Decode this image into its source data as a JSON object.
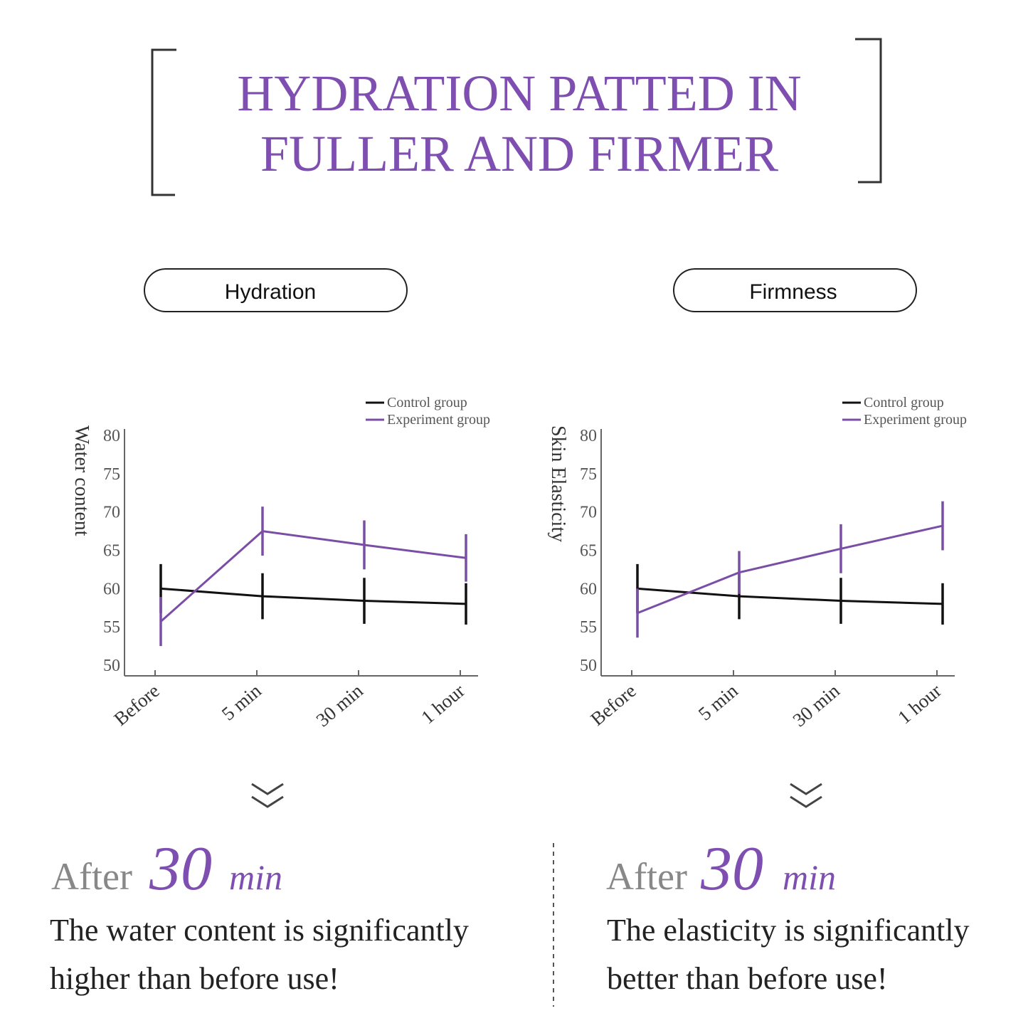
{
  "header": {
    "title_lines": [
      "HYDRATION PATTED IN",
      "FULLER AND FIRMER"
    ]
  },
  "chart_data": [
    {
      "type": "line",
      "title": "Hydration",
      "ylabel": "Water content",
      "categories": [
        "Before",
        "5 min",
        "30 min",
        "1 hour"
      ],
      "series": [
        {
          "name": "Control group",
          "color": "#111111",
          "values": [
            60,
            59,
            58.4,
            58
          ],
          "errors": [
            3.2,
            3,
            3,
            2.7
          ]
        },
        {
          "name": "Experiment group",
          "color": "#7b4ea6",
          "values": [
            55.7,
            67.5,
            65.7,
            64
          ],
          "errors": [
            3.2,
            3.2,
            3.2,
            3.1
          ]
        }
      ],
      "ylim": [
        50,
        80
      ],
      "yticks": [
        50,
        55,
        60,
        65,
        70,
        75,
        80
      ],
      "grid": false,
      "legend": "upper right"
    },
    {
      "type": "line",
      "title": "Firmness",
      "ylabel": "Skin Elasticity",
      "categories": [
        "Before",
        "5 min",
        "30 min",
        "1 hour"
      ],
      "series": [
        {
          "name": "Control group",
          "color": "#111111",
          "values": [
            60,
            59,
            58.4,
            58
          ],
          "errors": [
            3.2,
            3,
            3,
            2.7
          ]
        },
        {
          "name": "Experiment group",
          "color": "#7b4ea6",
          "values": [
            56.8,
            62.1,
            65.2,
            68.2
          ],
          "errors": [
            3.2,
            2.8,
            3.2,
            3.2
          ]
        }
      ],
      "ylim": [
        50,
        80
      ],
      "yticks": [
        50,
        55,
        60,
        65,
        70,
        75,
        80
      ],
      "grid": false,
      "legend": "upper right"
    }
  ],
  "captions": [
    {
      "after": "After",
      "number": "30",
      "unit": "min",
      "lines": [
        "The water content is significantly",
        "higher than before use!"
      ]
    },
    {
      "after": "After",
      "number": "30",
      "unit": "min",
      "lines": [
        "The elasticity is significantly",
        "better than before use!"
      ]
    }
  ]
}
